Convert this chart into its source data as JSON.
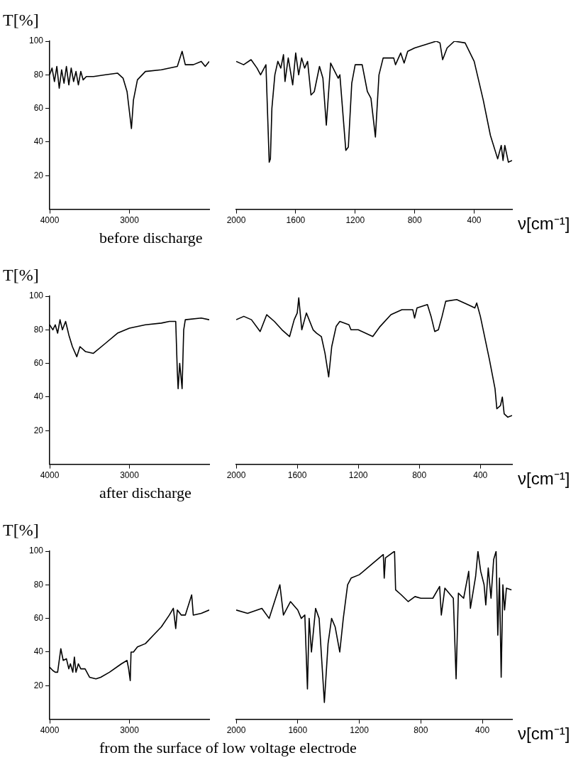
{
  "chart_data": [
    {
      "type": "line",
      "title": "before discharge",
      "ylabel": "T[%]",
      "color": "#000000",
      "xlim": [
        4000,
        2000
      ],
      "ylim": [
        0,
        100
      ],
      "xticks": [
        4000,
        3000
      ],
      "yticks": [
        20,
        40,
        60,
        80,
        100
      ],
      "grid": false,
      "x": [
        4000,
        3970,
        3940,
        3910,
        3880,
        3850,
        3820,
        3790,
        3760,
        3730,
        3700,
        3670,
        3640,
        3610,
        3580,
        3540,
        3450,
        3300,
        3150,
        3080,
        3030,
        2975,
        2950,
        2900,
        2800,
        2600,
        2400,
        2340,
        2300,
        2200,
        2100,
        2050,
        2000
      ],
      "values": [
        80,
        84,
        76,
        85,
        72,
        83,
        75,
        85,
        74,
        84,
        76,
        82,
        74,
        82,
        77,
        79,
        79,
        80,
        81,
        78,
        70,
        48,
        65,
        77,
        82,
        83,
        85,
        94,
        86,
        86,
        88,
        85,
        88
      ]
    },
    {
      "type": "line",
      "xlabel": "ν[cm⁻¹]",
      "color": "#000000",
      "xlim": [
        2000,
        145
      ],
      "ylim": [
        0,
        100
      ],
      "xticks": [
        2000,
        1600,
        1200,
        800,
        400
      ],
      "tick_labels": "x",
      "grid": false,
      "x": [
        2000,
        1950,
        1900,
        1860,
        1836,
        1800,
        1778,
        1770,
        1760,
        1740,
        1720,
        1700,
        1682,
        1672,
        1650,
        1620,
        1600,
        1580,
        1560,
        1540,
        1520,
        1497,
        1475,
        1440,
        1417,
        1394,
        1365,
        1337,
        1314,
        1303,
        1263,
        1246,
        1223,
        1200,
        1153,
        1118,
        1094,
        1064,
        1040,
        1012,
        941,
        929,
        894,
        871,
        847,
        800,
        727,
        655,
        630,
        612,
        582,
        533,
        461,
        400,
        339,
        291,
        242,
        218,
        206,
        194,
        170,
        145
      ],
      "values": [
        88,
        86,
        89,
        84,
        80,
        86,
        28,
        30,
        60,
        80,
        88,
        84,
        92,
        76,
        90,
        74,
        93,
        80,
        90,
        84,
        88,
        68,
        70,
        85,
        78,
        50,
        87,
        82,
        78,
        80,
        35,
        37,
        75,
        86,
        86,
        70,
        66,
        43,
        80,
        90,
        90,
        86,
        93,
        87,
        94,
        96,
        98,
        100,
        99,
        89,
        96,
        100,
        99,
        88,
        65,
        44,
        30,
        38,
        29,
        38,
        28,
        29
      ]
    },
    {
      "type": "line",
      "title": "after discharge",
      "ylabel": "T[%]",
      "color": "#000000",
      "xlim": [
        4000,
        2000
      ],
      "ylim": [
        0,
        100
      ],
      "xticks": [
        4000,
        3000
      ],
      "yticks": [
        20,
        40,
        60,
        80,
        100
      ],
      "grid": false,
      "x": [
        4000,
        3960,
        3930,
        3900,
        3870,
        3840,
        3800,
        3760,
        3715,
        3660,
        3620,
        3550,
        3452,
        3300,
        3150,
        3000,
        2800,
        2600,
        2500,
        2420,
        2400,
        2390,
        2370,
        2340,
        2320,
        2300,
        2100,
        2000
      ],
      "values": [
        83,
        80,
        83,
        78,
        86,
        80,
        85,
        77,
        70,
        64,
        70,
        67,
        66,
        72,
        78,
        81,
        83,
        84,
        85,
        85,
        55,
        45,
        60,
        45,
        80,
        86,
        87,
        86
      ]
    },
    {
      "type": "line",
      "xlabel": "ν[cm⁻¹]",
      "color": "#000000",
      "xlim": [
        2000,
        192
      ],
      "ylim": [
        0,
        100
      ],
      "xticks": [
        2000,
        1600,
        1200,
        800,
        400
      ],
      "tick_labels": "x",
      "grid": false,
      "x": [
        2000,
        1950,
        1900,
        1843,
        1800,
        1750,
        1700,
        1650,
        1620,
        1600,
        1590,
        1570,
        1540,
        1496,
        1473,
        1442,
        1418,
        1394,
        1374,
        1345,
        1321,
        1261,
        1248,
        1200,
        1105,
        1057,
        986,
        914,
        843,
        831,
        815,
        747,
        723,
        699,
        675,
        651,
        627,
        555,
        483,
        436,
        424,
        400,
        340,
        304,
        292,
        268,
        256,
        244,
        220,
        192
      ],
      "values": [
        86,
        88,
        86,
        79,
        89,
        85,
        80,
        76,
        86,
        90,
        99,
        80,
        90,
        80,
        78,
        76,
        66,
        52,
        70,
        82,
        85,
        83,
        80,
        80,
        76,
        82,
        89,
        92,
        92,
        87,
        93,
        95,
        88,
        79,
        80,
        88,
        97,
        98,
        95,
        93,
        96,
        88,
        62,
        45,
        33,
        35,
        40,
        30,
        28,
        29
      ]
    },
    {
      "type": "line",
      "title": "from the surface of low voltage electrode",
      "ylabel": "T[%]",
      "color": "#000000",
      "xlim": [
        4000,
        2000
      ],
      "ylim": [
        0,
        100
      ],
      "xticks": [
        4000,
        3000
      ],
      "yticks": [
        20,
        40,
        60,
        80,
        100
      ],
      "grid": false,
      "x": [
        4000,
        3960,
        3930,
        3900,
        3860,
        3830,
        3790,
        3760,
        3740,
        3710,
        3690,
        3670,
        3640,
        3610,
        3556,
        3500,
        3420,
        3360,
        3250,
        3100,
        3030,
        3010,
        2990,
        2980,
        2950,
        2900,
        2800,
        2700,
        2600,
        2500,
        2450,
        2420,
        2400,
        2350,
        2300,
        2220,
        2200,
        2100,
        2000
      ],
      "values": [
        31,
        29,
        28,
        28,
        42,
        35,
        36,
        30,
        33,
        28,
        37,
        28,
        33,
        30,
        30,
        25,
        24,
        25,
        28,
        33,
        35,
        30,
        23,
        40,
        40,
        43,
        45,
        50,
        55,
        62,
        66,
        54,
        65,
        62,
        62,
        74,
        62,
        63,
        65
      ]
    },
    {
      "type": "line",
      "xlabel": "ν[cm⁻¹]",
      "color": "#000000",
      "xlim": [
        2000,
        207
      ],
      "ylim": [
        0,
        100
      ],
      "xticks": [
        2000,
        1600,
        1200,
        800,
        400
      ],
      "tick_labels": "x",
      "grid": false,
      "x": [
        2000,
        1926,
        1833,
        1786,
        1716,
        1693,
        1647,
        1600,
        1577,
        1554,
        1537,
        1526,
        1511,
        1484,
        1461,
        1427,
        1403,
        1380,
        1357,
        1327,
        1304,
        1276,
        1253,
        1200,
        1122,
        1044,
        1038,
        1030,
        971,
        964,
        927,
        882,
        838,
        800,
        722,
        678,
        667,
        644,
        589,
        571,
        556,
        522,
        489,
        478,
        444,
        429,
        411,
        389,
        378,
        362,
        344,
        327,
        311,
        300,
        289,
        278,
        267,
        256,
        244,
        211
      ],
      "values": [
        65,
        63,
        66,
        60,
        80,
        62,
        70,
        65,
        60,
        62,
        18,
        60,
        40,
        66,
        60,
        10,
        45,
        60,
        55,
        40,
        60,
        80,
        84,
        86,
        92,
        98,
        84,
        96,
        100,
        77,
        74,
        70,
        73,
        72,
        72,
        79,
        62,
        78,
        72,
        24,
        75,
        72,
        88,
        66,
        85,
        100,
        88,
        80,
        68,
        90,
        72,
        95,
        100,
        50,
        84,
        25,
        80,
        65,
        78,
        77
      ]
    }
  ]
}
